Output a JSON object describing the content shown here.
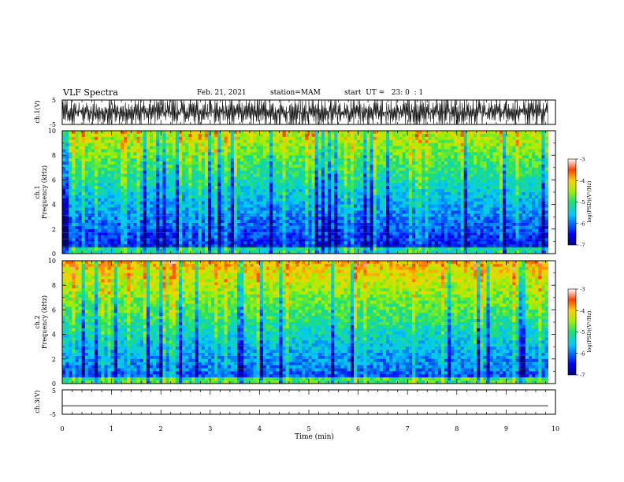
{
  "header": {
    "title": "VLF Spectra",
    "date": "Feb. 21, 2021",
    "station": "station=MAM",
    "start": "start  UT =   23: 0  : 1"
  },
  "chart_data": [
    {
      "type": "line",
      "panel": "ch1-waveform",
      "ylabel": "ch.1(V)",
      "ylim": [
        -5,
        5
      ],
      "yticks": [
        "5",
        "-5"
      ],
      "xlim": [
        0,
        10
      ],
      "description_values": "dense impulsive waveform between about -5 and 5 V across 0 to 9.85 min"
    },
    {
      "type": "heatmap",
      "panel": "ch1-spectrogram",
      "ylabel": "ch.1\nFrequency  (kHz)",
      "ylim": [
        0,
        10
      ],
      "yticks": [
        "0",
        "2",
        "4",
        "6",
        "8",
        "10"
      ],
      "xlim": [
        0,
        10
      ],
      "data_end_min": 9.85,
      "colorbar": {
        "label": "log(PSD)(V²/Hz)",
        "range": [
          -7,
          -3
        ],
        "ticks": [
          "-3",
          "-4",
          "-5",
          "-6",
          "-7"
        ]
      }
    },
    {
      "type": "heatmap",
      "panel": "ch2-spectrogram",
      "ylabel": "ch.2\nFrequency  (kHz)",
      "ylim": [
        0,
        10
      ],
      "yticks": [
        "0",
        "2",
        "4",
        "6",
        "8",
        "10"
      ],
      "xlim": [
        0,
        10
      ],
      "data_end_min": 9.85,
      "colorbar": {
        "label": "log(PSD)(V²/Hz)",
        "range": [
          -7,
          -3
        ],
        "ticks": [
          "-3",
          "-4",
          "-5",
          "-6",
          "-7"
        ]
      }
    },
    {
      "type": "line",
      "panel": "ch3-waveform",
      "ylabel": "ch.3(V)",
      "ylim": [
        -5,
        5
      ],
      "yticks": [
        "5",
        "-5"
      ],
      "xlim": [
        0,
        10
      ],
      "values_constant": -1.5
    }
  ],
  "x_axis": {
    "label": "Time  (min)",
    "ticks": [
      "0",
      "1",
      "2",
      "3",
      "4",
      "5",
      "6",
      "7",
      "8",
      "9",
      "10"
    ]
  },
  "ylabels": {
    "ch1": "ch.1(V)",
    "spec1_a": "ch.1",
    "spec1_b": "Frequency  (kHz)",
    "spec2_a": "ch.2",
    "spec2_b": "Frequency  (kHz)",
    "ch3": "ch.3(V)"
  },
  "colorbar_label": "log(PSD)(V²/Hz)"
}
